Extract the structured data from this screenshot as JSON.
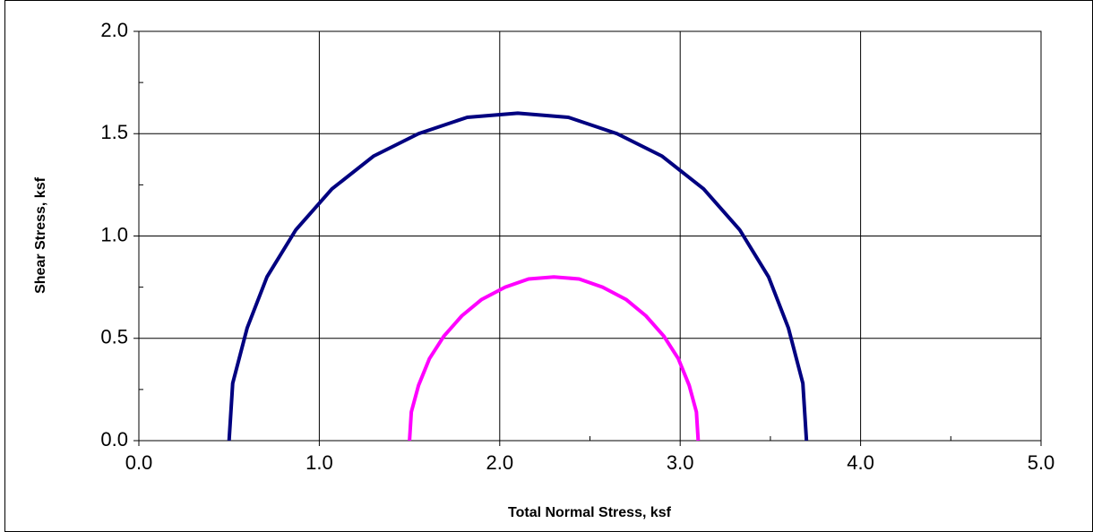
{
  "chart_data": {
    "type": "line",
    "x_label": "Total Normal Stress, ksf",
    "y_label": "Shear Stress, ksf",
    "xlim": [
      0,
      5
    ],
    "ylim": [
      0,
      2
    ],
    "xticks": [
      {
        "value": 0,
        "label": "0.0"
      },
      {
        "value": 1,
        "label": "1.0"
      },
      {
        "value": 2,
        "label": "2.0"
      },
      {
        "value": 3,
        "label": "3.0"
      },
      {
        "value": 4,
        "label": "4.0"
      },
      {
        "value": 5,
        "label": "5.0"
      }
    ],
    "yticks": [
      {
        "value": 0,
        "label": "0.0"
      },
      {
        "value": 0.5,
        "label": "0.5"
      },
      {
        "value": 1,
        "label": "1.0"
      },
      {
        "value": 1.5,
        "label": "1.5"
      },
      {
        "value": 2,
        "label": "2.0"
      }
    ],
    "x_minor_ticks": [
      0.5,
      1.5,
      2.5,
      3.5,
      4.5
    ],
    "y_minor_ticks": [
      0.25,
      0.75,
      1.25,
      1.75
    ],
    "grid": true,
    "series": [
      {
        "color": "#000080",
        "x": [
          3.7,
          3.68,
          3.6,
          3.49,
          3.33,
          3.13,
          2.9,
          2.65,
          2.38,
          2.1,
          1.82,
          1.55,
          1.3,
          1.07,
          0.87,
          0.71,
          0.6,
          0.52,
          0.5
        ],
        "values": [
          0,
          0.28,
          0.55,
          0.8,
          1.03,
          1.23,
          1.39,
          1.5,
          1.58,
          1.6,
          1.58,
          1.5,
          1.39,
          1.23,
          1.03,
          0.8,
          0.55,
          0.28,
          0
        ]
      },
      {
        "color": "#FF00FF",
        "x": [
          3.1,
          3.09,
          3.05,
          2.99,
          2.91,
          2.81,
          2.7,
          2.57,
          2.44,
          2.3,
          2.16,
          2.03,
          1.9,
          1.79,
          1.69,
          1.61,
          1.55,
          1.51,
          1.5
        ],
        "values": [
          0,
          0.14,
          0.27,
          0.4,
          0.51,
          0.61,
          0.69,
          0.75,
          0.79,
          0.8,
          0.79,
          0.75,
          0.69,
          0.61,
          0.51,
          0.4,
          0.27,
          0.14,
          0
        ]
      }
    ]
  }
}
